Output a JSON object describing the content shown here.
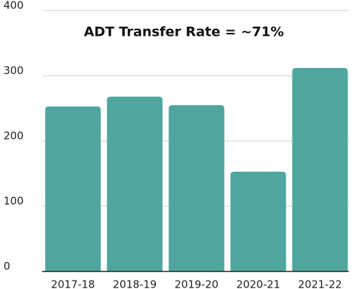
{
  "chart_data": {
    "type": "bar",
    "title": "ADT Transfer Rate = ~71%",
    "categories": [
      "2017-18",
      "2018-19",
      "2019-20",
      "2020-21",
      "2021-22"
    ],
    "values": [
      253,
      268,
      255,
      153,
      312
    ],
    "color": "#4fa69e",
    "ylim": [
      0,
      400
    ],
    "yticks": [
      0,
      100,
      200,
      300,
      400
    ],
    "grid": true
  }
}
